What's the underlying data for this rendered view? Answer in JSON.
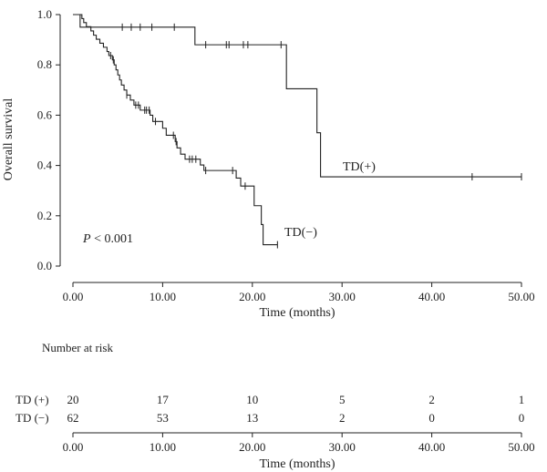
{
  "chart_data": {
    "type": "line",
    "subtype": "kaplan-meier",
    "xlabel": "Time (months)",
    "ylabel": "Overall survival",
    "xlim": [
      0,
      50
    ],
    "ylim": [
      0,
      1
    ],
    "x_ticks": [
      "0.00",
      "10.00",
      "20.00",
      "30.00",
      "40.00",
      "50.00"
    ],
    "y_ticks": [
      "0.0",
      "0.2",
      "0.4",
      "0.6",
      "0.8",
      "1.0"
    ],
    "grid": false,
    "annotation": {
      "p_symbol": "P",
      "p_rest": " < 0.001"
    },
    "series": [
      {
        "name": "TD(+)",
        "color": "#222222",
        "steps": [
          [
            0,
            1.0
          ],
          [
            0.8,
            1.0
          ],
          [
            0.8,
            0.95
          ],
          [
            13.6,
            0.95
          ],
          [
            13.6,
            0.88
          ],
          [
            23.8,
            0.88
          ],
          [
            23.8,
            0.705
          ],
          [
            27.2,
            0.705
          ],
          [
            27.2,
            0.53
          ],
          [
            27.6,
            0.53
          ],
          [
            27.6,
            0.355
          ],
          [
            50,
            0.355
          ]
        ],
        "censors": [
          [
            5.5,
            0.95
          ],
          [
            6.5,
            0.95
          ],
          [
            7.5,
            0.95
          ],
          [
            8.8,
            0.95
          ],
          [
            11.3,
            0.95
          ],
          [
            14.8,
            0.88
          ],
          [
            17.1,
            0.88
          ],
          [
            17.4,
            0.88
          ],
          [
            19.0,
            0.88
          ],
          [
            19.5,
            0.88
          ],
          [
            23.2,
            0.88
          ],
          [
            44.5,
            0.355
          ],
          [
            50.0,
            0.355
          ]
        ]
      },
      {
        "name": "TD(−)",
        "color": "#222222",
        "steps": [
          [
            0,
            1.0
          ],
          [
            1.0,
            1.0
          ],
          [
            1.0,
            0.984
          ],
          [
            1.2,
            0.984
          ],
          [
            1.2,
            0.968
          ],
          [
            1.5,
            0.968
          ],
          [
            1.5,
            0.952
          ],
          [
            2.0,
            0.952
          ],
          [
            2.0,
            0.935
          ],
          [
            2.3,
            0.935
          ],
          [
            2.3,
            0.918
          ],
          [
            2.6,
            0.918
          ],
          [
            2.6,
            0.902
          ],
          [
            3.0,
            0.902
          ],
          [
            3.0,
            0.886
          ],
          [
            3.4,
            0.886
          ],
          [
            3.4,
            0.87
          ],
          [
            3.8,
            0.87
          ],
          [
            3.8,
            0.853
          ],
          [
            4.0,
            0.853
          ],
          [
            4.0,
            0.837
          ],
          [
            4.4,
            0.837
          ],
          [
            4.4,
            0.82
          ],
          [
            4.6,
            0.82
          ],
          [
            4.6,
            0.8
          ],
          [
            4.8,
            0.8
          ],
          [
            4.8,
            0.78
          ],
          [
            5.0,
            0.78
          ],
          [
            5.0,
            0.76
          ],
          [
            5.2,
            0.76
          ],
          [
            5.2,
            0.74
          ],
          [
            5.4,
            0.74
          ],
          [
            5.4,
            0.72
          ],
          [
            5.7,
            0.72
          ],
          [
            5.7,
            0.7
          ],
          [
            6.0,
            0.7
          ],
          [
            6.0,
            0.68
          ],
          [
            6.4,
            0.68
          ],
          [
            6.4,
            0.66
          ],
          [
            6.8,
            0.66
          ],
          [
            6.8,
            0.64
          ],
          [
            7.5,
            0.64
          ],
          [
            7.5,
            0.62
          ],
          [
            8.6,
            0.62
          ],
          [
            8.6,
            0.6
          ],
          [
            8.9,
            0.6
          ],
          [
            8.9,
            0.575
          ],
          [
            10.0,
            0.575
          ],
          [
            10.0,
            0.548
          ],
          [
            10.4,
            0.548
          ],
          [
            10.4,
            0.52
          ],
          [
            11.4,
            0.52
          ],
          [
            11.4,
            0.495
          ],
          [
            11.6,
            0.495
          ],
          [
            11.6,
            0.47
          ],
          [
            12.0,
            0.47
          ],
          [
            12.0,
            0.445
          ],
          [
            12.5,
            0.445
          ],
          [
            12.5,
            0.425
          ],
          [
            14.2,
            0.425
          ],
          [
            14.2,
            0.402
          ],
          [
            14.6,
            0.402
          ],
          [
            14.6,
            0.38
          ],
          [
            18.2,
            0.38
          ],
          [
            18.2,
            0.35
          ],
          [
            18.7,
            0.35
          ],
          [
            18.7,
            0.318
          ],
          [
            20.2,
            0.318
          ],
          [
            20.2,
            0.24
          ],
          [
            21.0,
            0.24
          ],
          [
            21.0,
            0.165
          ],
          [
            21.2,
            0.165
          ],
          [
            21.2,
            0.085
          ],
          [
            22.8,
            0.085
          ]
        ],
        "censors": [
          [
            4.2,
            0.837
          ],
          [
            4.5,
            0.82
          ],
          [
            6.0,
            0.68
          ],
          [
            7.0,
            0.64
          ],
          [
            7.3,
            0.64
          ],
          [
            8.0,
            0.62
          ],
          [
            8.2,
            0.62
          ],
          [
            8.5,
            0.62
          ],
          [
            9.2,
            0.575
          ],
          [
            11.2,
            0.52
          ],
          [
            11.5,
            0.495
          ],
          [
            13.0,
            0.425
          ],
          [
            13.3,
            0.425
          ],
          [
            13.7,
            0.425
          ],
          [
            14.8,
            0.38
          ],
          [
            17.8,
            0.38
          ],
          [
            19.2,
            0.318
          ],
          [
            22.8,
            0.085
          ]
        ]
      }
    ],
    "risk_table": {
      "title": "Number at risk",
      "x_ticks": [
        "0.00",
        "10.00",
        "20.00",
        "30.00",
        "40.00",
        "50.00"
      ],
      "xlabel": "Time (months)",
      "rows": [
        {
          "label": "TD (+)",
          "values": [
            "20",
            "17",
            "10",
            "5",
            "2",
            "1"
          ]
        },
        {
          "label": "TD (−)",
          "values": [
            "62",
            "53",
            "13",
            "2",
            "0",
            "0"
          ]
        }
      ]
    }
  }
}
